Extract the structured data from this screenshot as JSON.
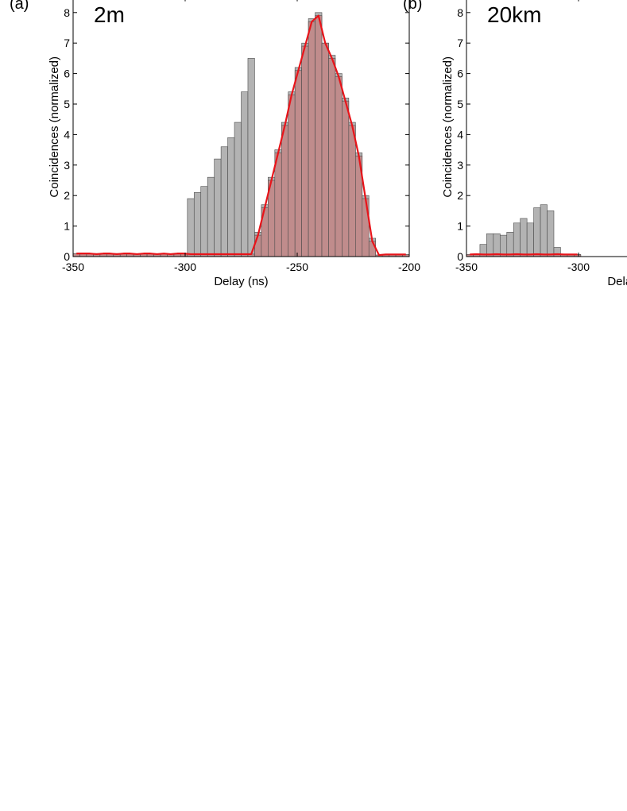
{
  "chart_data": [
    {
      "type": "histogram",
      "panel_label": "(a)",
      "annotation": "2m",
      "x_label": "Delay (ns)",
      "y_label": "Coincidences (normalized)",
      "xlim": [
        -350,
        -200
      ],
      "xticks": [
        -350,
        -300,
        -250,
        -200
      ],
      "ylim": [
        0,
        8.5
      ],
      "yticks": [
        0,
        1,
        2,
        3,
        4,
        5,
        6,
        7,
        8
      ],
      "bins": [
        -350,
        -347,
        -344,
        -341,
        -338,
        -335,
        -332,
        -329,
        -326,
        -323,
        -320,
        -317,
        -314,
        -311,
        -308,
        -305,
        -302,
        -299,
        -296,
        -293,
        -290,
        -287,
        -284,
        -281,
        -278,
        -275,
        -272,
        -269,
        -266,
        -263,
        -260,
        -257,
        -254,
        -251,
        -248,
        -245,
        -242,
        -239,
        -236,
        -233,
        -230,
        -227,
        -224,
        -221,
        -218,
        -215,
        -212,
        -209,
        -206,
        -203,
        -200
      ],
      "series": [
        {
          "color": "#b3b3b3",
          "values": [
            0.1,
            0.1,
            0.05,
            0.1,
            0.05,
            0.05,
            0.1,
            0.05,
            0.05,
            0.05,
            0.05,
            0.1,
            0.05,
            0.05,
            0.05,
            0.05,
            0.05,
            1.9,
            2.1,
            2.3,
            2.6,
            3.2,
            3.6,
            3.9,
            4.4,
            5.4,
            6.5,
            0.8,
            1.7,
            2.6,
            3.5,
            4.4,
            5.4,
            6.2,
            7.0,
            7.8,
            8.0,
            7.0,
            6.6,
            6.0,
            5.2,
            4.4,
            3.4,
            2.0,
            0.6,
            0.05,
            0.05,
            0.05,
            0.05,
            0.05
          ]
        },
        {
          "color": "#c08c8c",
          "line_color": "#e8141a",
          "values": [
            0.1,
            0.1,
            0.1,
            0.08,
            0.1,
            0.1,
            0.08,
            0.1,
            0.1,
            0.08,
            0.1,
            0.1,
            0.08,
            0.1,
            0.08,
            0.1,
            0.1,
            0.08,
            0.08,
            0.08,
            0.08,
            0.08,
            0.08,
            0.08,
            0.08,
            0.08,
            0.08,
            0.7,
            1.6,
            2.5,
            3.4,
            4.3,
            5.3,
            6.1,
            6.9,
            7.7,
            7.9,
            7.0,
            6.5,
            5.9,
            5.1,
            4.3,
            3.3,
            1.9,
            0.5,
            0.05,
            0.07,
            0.07,
            0.07,
            0.07
          ]
        }
      ]
    },
    {
      "type": "histogram",
      "panel_label": "(b)",
      "annotation": "20km",
      "x_label": "Delay (ns)",
      "y_label": "Coincidences (normalized)",
      "xlim": [
        -350,
        -200
      ],
      "xticks": [
        -350,
        -300
      ],
      "ylim": [
        0,
        8.5
      ],
      "yticks": [
        0,
        1,
        2,
        3,
        4,
        5,
        6,
        7,
        8
      ],
      "bins": [
        -350,
        -347,
        -344,
        -341,
        -338,
        -335,
        -332,
        -329,
        -326,
        -323,
        -320,
        -317,
        -314,
        -311,
        -308,
        -305,
        -302,
        -299
      ],
      "series": [
        {
          "color": "#b3b3b3",
          "values": [
            0.05,
            0.05,
            0.4,
            0.75,
            0.75,
            0.7,
            0.8,
            1.1,
            1.25,
            1.1,
            1.6,
            1.7,
            1.5,
            0.3,
            0.05,
            0.05,
            0.05
          ]
        },
        {
          "color": "#c08c8c",
          "line_color": "#e8141a",
          "values": [
            0.07,
            0.08,
            0.07,
            0.07,
            0.08,
            0.07,
            0.07,
            0.08,
            0.07,
            0.07,
            0.08,
            0.07,
            0.07,
            0.08,
            0.07,
            0.07,
            0.07
          ]
        }
      ]
    }
  ]
}
